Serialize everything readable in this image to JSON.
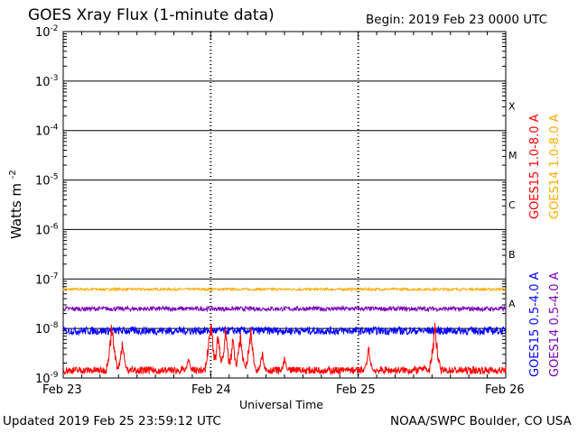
{
  "header": {
    "title": "GOES Xray Flux (1-minute data)",
    "begin": "Begin:  2019 Feb 23 0000 UTC"
  },
  "footer": {
    "updated": "Updated 2019 Feb 25 23:59:12 UTC",
    "credit": "NOAA/SWPC Boulder, CO USA"
  },
  "chart_data": {
    "type": "line",
    "title": "GOES Xray Flux (1-minute data)",
    "xlabel": "Universal Time",
    "ylabel_base": "Watts m",
    "ylabel_exp": "-2",
    "yscale": "log",
    "ylim": [
      1e-09,
      0.01
    ],
    "x_ticks": [
      "Feb 23",
      "Feb 24",
      "Feb 25",
      "Feb 26"
    ],
    "x_range_days": [
      0,
      3
    ],
    "y_ticks": [
      {
        "base": "10",
        "exp": "-2"
      },
      {
        "base": "10",
        "exp": "-3"
      },
      {
        "base": "10",
        "exp": "-4"
      },
      {
        "base": "10",
        "exp": "-5"
      },
      {
        "base": "10",
        "exp": "-6"
      },
      {
        "base": "10",
        "exp": "-7"
      },
      {
        "base": "10",
        "exp": "-8"
      },
      {
        "base": "10",
        "exp": "-9"
      }
    ],
    "flare_classes": [
      "X",
      "M",
      "C",
      "B",
      "A"
    ],
    "series": [
      {
        "name": "GOES15 1.0-8.0 A",
        "color": "#ff0000",
        "baseline": 1.2e-09,
        "spikes": [
          {
            "day": 0.33,
            "peak": 1.5e-08
          },
          {
            "day": 0.4,
            "peak": 7e-09
          },
          {
            "day": 0.48,
            "peak": 1.5e-09
          },
          {
            "day": 0.55,
            "peak": 1.2e-09
          },
          {
            "day": 0.68,
            "peak": 1.3e-09
          },
          {
            "day": 0.85,
            "peak": 3e-09
          },
          {
            "day": 1.0,
            "peak": 1.8e-08
          },
          {
            "day": 1.05,
            "peak": 1e-08
          },
          {
            "day": 1.1,
            "peak": 1.2e-08
          },
          {
            "day": 1.15,
            "peak": 8e-09
          },
          {
            "day": 1.2,
            "peak": 1e-08
          },
          {
            "day": 1.27,
            "peak": 1.2e-08
          },
          {
            "day": 1.35,
            "peak": 4e-09
          },
          {
            "day": 1.5,
            "peak": 3e-09
          },
          {
            "day": 1.6,
            "peak": 1.5e-09
          },
          {
            "day": 1.75,
            "peak": 1.3e-09
          },
          {
            "day": 1.92,
            "peak": 1.6e-09
          },
          {
            "day": 2.07,
            "peak": 5e-09
          },
          {
            "day": 2.45,
            "peak": 2e-09
          },
          {
            "day": 2.52,
            "peak": 1.5e-08
          }
        ]
      },
      {
        "name": "GOES14 1.0-8.0 A",
        "color": "#ffaa00",
        "level": 6.2e-08
      },
      {
        "name": "GOES15 0.5-4.0 A",
        "color": "#0000ff",
        "level": 9e-09
      },
      {
        "name": "GOES14 0.5-4.0 A",
        "color": "#7700bb",
        "level": 2.5e-08
      }
    ],
    "grid": "horizontal lines at decades, dotted day separators"
  }
}
